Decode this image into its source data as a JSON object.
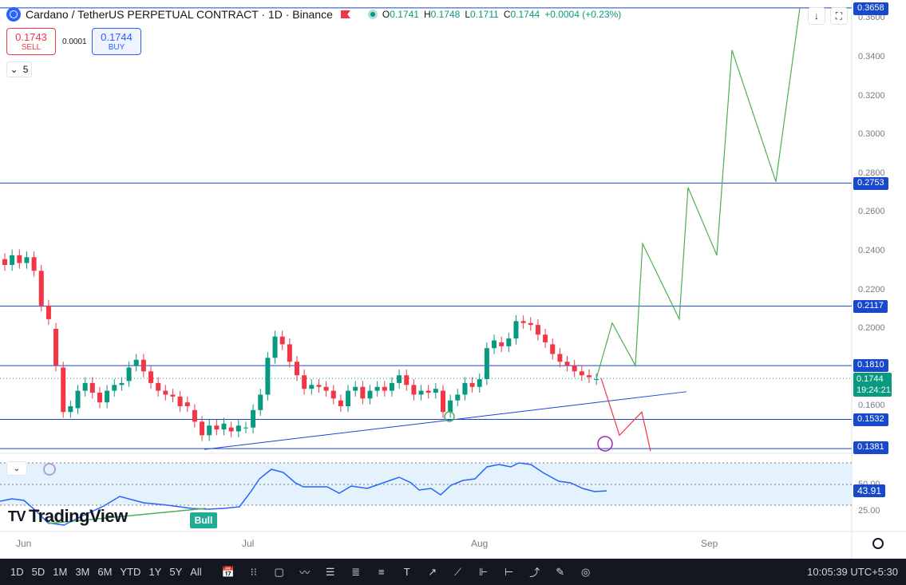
{
  "header": {
    "title": "Cardano / TetherUS PERPETUAL CONTRACT · 1D · Binance",
    "ohlc": [
      {
        "k": "O",
        "v": "0.1741"
      },
      {
        "k": "H",
        "v": "0.1748"
      },
      {
        "k": "L",
        "v": "0.1711"
      },
      {
        "k": "C",
        "v": "0.1744"
      },
      {
        "k": "",
        "v": "+0.0004 (+0.23%)"
      }
    ]
  },
  "trade": {
    "sell_price": "0.1743",
    "sell_label": "SELL",
    "spread": "0.0001",
    "buy_price": "0.1744",
    "buy_label": "BUY"
  },
  "indicator_count": "5",
  "price_axis": [
    "0.3600",
    "0.3400",
    "0.3200",
    "0.3000",
    "0.2800",
    "0.2600",
    "0.2400",
    "0.2200",
    "0.2000",
    "0.1600"
  ],
  "price_tags": {
    "top": "0.3658",
    "r1": "0.2753",
    "r2": "0.2117",
    "r3": "0.1810",
    "s1": "0.1532",
    "s2": "0.1381"
  },
  "current": {
    "price": "0.1744",
    "countdown": "19:24:21"
  },
  "rsi": {
    "value": "43.91",
    "level_50": "50.00",
    "level_25": "25.00",
    "badge": "Bull"
  },
  "dates": [
    "Jun",
    "Jul",
    "Aug",
    "Sep"
  ],
  "logo": "TradingView",
  "toolbar": {
    "timeframes": [
      "1D",
      "5D",
      "1M",
      "3M",
      "6M",
      "YTD",
      "1Y",
      "5Y",
      "All"
    ],
    "time": "10:05:39 UTC+5:30"
  },
  "colors": {
    "up": "#089981",
    "down": "#f23645",
    "line": "#1848cc",
    "forecast_up": "#4caf50",
    "forecast_down": "#f23645",
    "rsi": "#2962ff"
  },
  "chart_data": {
    "type": "candlestick",
    "title": "Cardano / TetherUS PERPETUAL CONTRACT · 1D · Binance",
    "horizontal_levels": [
      0.3658,
      0.2753,
      0.2117,
      0.181,
      0.1532,
      0.1381
    ],
    "ylim": [
      0.1381,
      0.3658
    ],
    "candles": [
      {
        "o": 0.236,
        "c": 0.233
      },
      {
        "o": 0.233,
        "c": 0.238
      },
      {
        "o": 0.238,
        "c": 0.234
      },
      {
        "o": 0.234,
        "c": 0.237
      },
      {
        "o": 0.237,
        "c": 0.23
      },
      {
        "o": 0.23,
        "c": 0.212
      },
      {
        "o": 0.212,
        "c": 0.205
      },
      {
        "o": 0.2,
        "c": 0.181
      },
      {
        "o": 0.18,
        "c": 0.157
      },
      {
        "o": 0.157,
        "c": 0.16
      },
      {
        "o": 0.159,
        "c": 0.168
      },
      {
        "o": 0.168,
        "c": 0.172
      },
      {
        "o": 0.172,
        "c": 0.167
      },
      {
        "o": 0.167,
        "c": 0.162
      },
      {
        "o": 0.162,
        "c": 0.168
      },
      {
        "o": 0.168,
        "c": 0.171
      },
      {
        "o": 0.171,
        "c": 0.172
      },
      {
        "o": 0.173,
        "c": 0.18
      },
      {
        "o": 0.181,
        "c": 0.184
      },
      {
        "o": 0.184,
        "c": 0.178
      },
      {
        "o": 0.178,
        "c": 0.172
      },
      {
        "o": 0.172,
        "c": 0.168
      },
      {
        "o": 0.168,
        "c": 0.166
      },
      {
        "o": 0.166,
        "c": 0.165
      },
      {
        "o": 0.165,
        "c": 0.16
      },
      {
        "o": 0.162,
        "c": 0.16
      },
      {
        "o": 0.158,
        "c": 0.152
      },
      {
        "o": 0.152,
        "c": 0.145
      },
      {
        "o": 0.145,
        "c": 0.15
      },
      {
        "o": 0.15,
        "c": 0.148
      },
      {
        "o": 0.148,
        "c": 0.151
      },
      {
        "o": 0.149,
        "c": 0.147
      },
      {
        "o": 0.147,
        "c": 0.15
      },
      {
        "o": 0.149,
        "c": 0.149
      },
      {
        "o": 0.149,
        "c": 0.158
      },
      {
        "o": 0.158,
        "c": 0.166
      },
      {
        "o": 0.166,
        "c": 0.185
      },
      {
        "o": 0.185,
        "c": 0.196
      },
      {
        "o": 0.196,
        "c": 0.192
      },
      {
        "o": 0.192,
        "c": 0.183
      },
      {
        "o": 0.183,
        "c": 0.176
      },
      {
        "o": 0.176,
        "c": 0.169
      },
      {
        "o": 0.169,
        "c": 0.171
      },
      {
        "o": 0.171,
        "c": 0.17
      },
      {
        "o": 0.17,
        "c": 0.168
      },
      {
        "o": 0.168,
        "c": 0.164
      },
      {
        "o": 0.163,
        "c": 0.16
      },
      {
        "o": 0.16,
        "c": 0.168
      },
      {
        "o": 0.168,
        "c": 0.17
      },
      {
        "o": 0.17,
        "c": 0.164
      },
      {
        "o": 0.164,
        "c": 0.168
      },
      {
        "o": 0.168,
        "c": 0.17
      },
      {
        "o": 0.17,
        "c": 0.168
      },
      {
        "o": 0.168,
        "c": 0.172
      },
      {
        "o": 0.172,
        "c": 0.176
      },
      {
        "o": 0.176,
        "c": 0.171
      },
      {
        "o": 0.171,
        "c": 0.166
      },
      {
        "o": 0.166,
        "c": 0.168
      },
      {
        "o": 0.168,
        "c": 0.167
      },
      {
        "o": 0.167,
        "c": 0.169
      },
      {
        "o": 0.168,
        "c": 0.157
      },
      {
        "o": 0.157,
        "c": 0.163
      },
      {
        "o": 0.163,
        "c": 0.166
      },
      {
        "o": 0.166,
        "c": 0.172
      },
      {
        "o": 0.172,
        "c": 0.17
      },
      {
        "o": 0.17,
        "c": 0.174
      },
      {
        "o": 0.174,
        "c": 0.19
      },
      {
        "o": 0.19,
        "c": 0.194
      },
      {
        "o": 0.193,
        "c": 0.191
      },
      {
        "o": 0.191,
        "c": 0.195
      },
      {
        "o": 0.195,
        "c": 0.204
      },
      {
        "o": 0.204,
        "c": 0.203
      },
      {
        "o": 0.203,
        "c": 0.202
      },
      {
        "o": 0.202,
        "c": 0.197
      },
      {
        "o": 0.197,
        "c": 0.193
      },
      {
        "o": 0.192,
        "c": 0.187
      },
      {
        "o": 0.187,
        "c": 0.183
      },
      {
        "o": 0.183,
        "c": 0.181
      },
      {
        "o": 0.181,
        "c": 0.178
      },
      {
        "o": 0.178,
        "c": 0.176
      },
      {
        "o": 0.176,
        "c": 0.175
      },
      {
        "o": 0.174,
        "c": 0.174
      }
    ],
    "forecast_up": [
      [
        0.1744
      ],
      [
        0.203
      ],
      [
        0.181
      ],
      [
        0.244
      ],
      [
        0.205
      ],
      [
        0.273
      ],
      [
        0.238
      ],
      [
        0.344
      ],
      [
        0.276
      ],
      [
        0.3658
      ]
    ],
    "forecast_down": [
      [
        0.1744
      ],
      [
        0.145
      ],
      [
        0.157
      ],
      [
        0.138
      ]
    ]
  }
}
